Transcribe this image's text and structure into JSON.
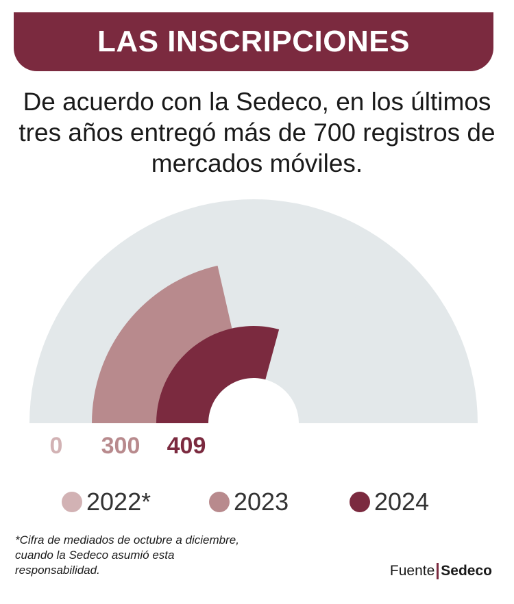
{
  "header": {
    "title": "LAS INSCRIPCIONES",
    "subtitle": "De acuerdo con la Sedeco, en los últimos tres años entregó más de 700 registros de mercados móviles."
  },
  "chart_data": {
    "type": "radial-bar",
    "title": "LAS INSCRIPCIONES",
    "max": 700,
    "series": [
      {
        "name": "2022*",
        "value": 0,
        "label": "0",
        "color": "#d2b2b4"
      },
      {
        "name": "2023",
        "value": 300,
        "label": "300",
        "color": "#b88a8d"
      },
      {
        "name": "2024",
        "value": 409,
        "label": "409",
        "color": "#7b2a3f"
      }
    ],
    "track_color": "#e3e8ea"
  },
  "legend": [
    {
      "label": "2022*",
      "color": "#d2b2b4"
    },
    {
      "label": "2023",
      "color": "#b88a8d"
    },
    {
      "label": "2024",
      "color": "#7b2a3f"
    }
  ],
  "footnote": "*Cifra de mediados de octubre a diciembre, cuando la Sedeco asumió esta responsabilidad.",
  "source": {
    "prefix": "Fuente",
    "name": "Sedeco"
  }
}
